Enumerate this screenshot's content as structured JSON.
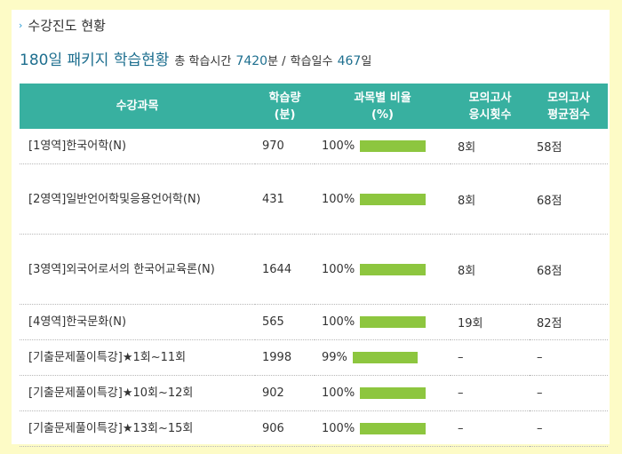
{
  "section_title": "수강진도 현황",
  "summary": {
    "package_title": "180일 패키지 학습현황",
    "total_time_label": "총 학습시간",
    "total_time_value": "7420",
    "total_time_unit": "분 /",
    "total_days_label": "학습일수",
    "total_days_value": "467",
    "total_days_unit": "일"
  },
  "table": {
    "headers": [
      "수강과목",
      "학습량\n(분)",
      "과목별 비율\n(%)",
      "모의고사\n응시횟수",
      "모의고사\n평균점수"
    ],
    "rows": [
      {
        "course": "[1영역]한국어학(N)",
        "minutes": "970",
        "ratio": "100%",
        "ratio_value": 1.0,
        "attempts": "8회",
        "score": "58점"
      },
      {
        "course": "[2영역]일반언어학및응용언어학(N)",
        "minutes": "431",
        "ratio": "100%",
        "ratio_value": 1.0,
        "attempts": "8회",
        "score": "68점"
      },
      {
        "course": "[3영역]외국어로서의 한국어교육론(N)",
        "minutes": "1644",
        "ratio": "100%",
        "ratio_value": 1.0,
        "attempts": "8회",
        "score": "68점"
      },
      {
        "course": "[4영역]한국문화(N)",
        "minutes": "565",
        "ratio": "100%",
        "ratio_value": 1.0,
        "attempts": "19회",
        "score": "82점"
      },
      {
        "course": "[기출문제풀이특강]★1회~11회",
        "minutes": "1998",
        "ratio": "99%",
        "ratio_value": 0.99,
        "attempts": "–",
        "score": "–"
      },
      {
        "course": "[기출문제풀이특강]★10회~12회",
        "minutes": "902",
        "ratio": "100%",
        "ratio_value": 1.0,
        "attempts": "–",
        "score": "–"
      },
      {
        "course": "[기출문제풀이특강]★13회~15회",
        "minutes": "906",
        "ratio": "100%",
        "ratio_value": 1.0,
        "attempts": "–",
        "score": "–"
      }
    ]
  },
  "colors": {
    "page_background": "#fdfbc6",
    "header_background": "#38b0a0",
    "accent": "#1e6f8f",
    "bar": "#8dc63f",
    "arrow": "#2a9bd4"
  },
  "icons": {
    "section_arrow": "chevron-right-icon"
  }
}
